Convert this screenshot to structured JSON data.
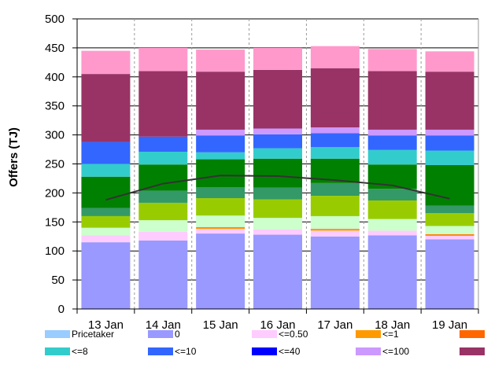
{
  "chart_data": {
    "type": "bar",
    "stacked": true,
    "categories": [
      "13 Jan",
      "14 Jan",
      "15 Jan",
      "16 Jan",
      "17 Jan",
      "18 Jan",
      "19 Jan"
    ],
    "ylabel": "Offers (TJ)",
    "ylim": [
      0,
      500
    ],
    "yticks": [
      0,
      50,
      100,
      150,
      200,
      250,
      300,
      350,
      400,
      450,
      500
    ],
    "grid": {
      "horizontal": true,
      "vertical": "dashed-between-categories"
    },
    "legend_position": "bottom",
    "series": [
      {
        "name": "Pricetaker",
        "color": "#99ccff",
        "values": [
          0,
          0,
          0,
          0,
          0,
          0,
          0
        ]
      },
      {
        "name": "0",
        "color": "#9999ff",
        "values": [
          115,
          118,
          130,
          128,
          125,
          127,
          120
        ]
      },
      {
        "name": "<=0.50",
        "color": "#ffccff",
        "values": [
          12,
          15,
          8,
          9,
          10,
          8,
          6
        ]
      },
      {
        "name": "<=1",
        "color": "#ff9900",
        "values": [
          0,
          0,
          2,
          0,
          2,
          0,
          2
        ]
      },
      {
        "name": "",
        "color": "#ff6600",
        "values": [
          0,
          0,
          1,
          0,
          1,
          0,
          1
        ]
      },
      {
        "name": "",
        "color": "#ccffcc",
        "values": [
          13,
          20,
          20,
          20,
          22,
          20,
          14
        ]
      },
      {
        "name": "",
        "color": "#99cc00",
        "values": [
          20,
          30,
          30,
          32,
          35,
          32,
          22
        ]
      },
      {
        "name": "",
        "color": "#339966",
        "values": [
          14,
          21,
          19,
          20,
          22,
          20,
          13
        ]
      },
      {
        "name": "",
        "color": "#008000",
        "values": [
          54,
          45,
          48,
          50,
          42,
          42,
          70
        ]
      },
      {
        "name": "<=8",
        "color": "#33cccc",
        "values": [
          22,
          22,
          12,
          18,
          20,
          25,
          25
        ]
      },
      {
        "name": "<=10",
        "color": "#3366ff",
        "values": [
          38,
          26,
          29,
          24,
          24,
          25,
          26
        ]
      },
      {
        "name": "<=40",
        "color": "#0000ff",
        "values": [
          0,
          0,
          0,
          0,
          0,
          0,
          0
        ]
      },
      {
        "name": "<=100",
        "color": "#cc99ff",
        "values": [
          0,
          0,
          10,
          10,
          10,
          10,
          10
        ]
      },
      {
        "name": "",
        "color": "#993366",
        "values": [
          117,
          113,
          100,
          101,
          102,
          101,
          100
        ]
      },
      {
        "name": "",
        "color": "#ff99cc",
        "values": [
          40,
          40,
          38,
          38,
          38,
          38,
          35
        ]
      }
    ],
    "line_series": {
      "name": "",
      "color": "#333333",
      "values": [
        188,
        216,
        230,
        229,
        222,
        213,
        190
      ]
    }
  },
  "legend": [
    {
      "label": "Pricetaker",
      "color": "#99ccff"
    },
    {
      "label": "0",
      "color": "#9999ff"
    },
    {
      "label": "<=0.50",
      "color": "#ffccff"
    },
    {
      "label": "<=1",
      "color": "#ff9900"
    },
    {
      "label": "",
      "color": "#ff6600"
    },
    {
      "label": "<=8",
      "color": "#33cccc"
    },
    {
      "label": "<=10",
      "color": "#3366ff"
    },
    {
      "label": "<=40",
      "color": "#0000ff"
    },
    {
      "label": "<=100",
      "color": "#cc99ff"
    },
    {
      "label": "",
      "color": "#993366"
    }
  ]
}
